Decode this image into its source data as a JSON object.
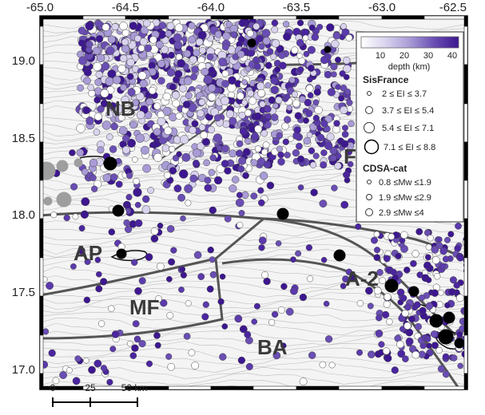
{
  "map": {
    "lon_ticks": [
      "-65.0",
      "-64.5",
      "-64.0",
      "-63.5",
      "-63.0",
      "-62.5"
    ],
    "lat_ticks": [
      "19.0",
      "18.5",
      "18.0",
      "17.5",
      "17.0"
    ],
    "region_labels": [
      "NB",
      "AP",
      "MF",
      "BA",
      "A-2",
      "F"
    ],
    "scale_bar": {
      "labels": [
        "0",
        "25",
        "50 km"
      ]
    }
  },
  "legend": {
    "depth": {
      "ticks": [
        "10",
        "20",
        "30",
        "40"
      ],
      "title": "depth (km)",
      "colors": [
        "#ffffff",
        "#d9d3ee",
        "#a99bd6",
        "#6a4eb4",
        "#3d1790"
      ]
    },
    "sisfrance": {
      "title": "SisFrance",
      "entries": [
        "2 ≤ EI ≤ 3.7",
        "3.7 ≤ EI ≤ 5.4",
        "5.4 ≤ EI ≤ 7.1",
        "7.1 ≤ EI ≤ 8.8"
      ]
    },
    "cdsa": {
      "title": "CDSA-cat",
      "entries": [
        "0.8 ≤Mw ≤1.9",
        "1.9 ≤Mw ≤2.9",
        "2.9 ≤Mw ≤4"
      ]
    }
  }
}
